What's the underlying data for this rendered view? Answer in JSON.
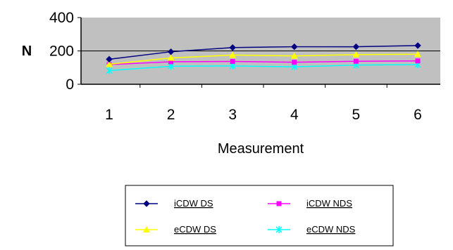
{
  "chart_data": {
    "type": "line",
    "title": "",
    "xlabel": "Measurement",
    "ylabel": "N",
    "categories": [
      "1",
      "2",
      "3",
      "4",
      "5",
      "6"
    ],
    "ylim": [
      0,
      400
    ],
    "yticks": [
      "0",
      "200",
      "400"
    ],
    "grid": "horizontal at 200",
    "legend_position": "bottom",
    "plot_background": "#c0c0c0",
    "series": [
      {
        "name": "iCDW DS",
        "color": "#000080",
        "marker": "diamond",
        "values": [
          150,
          195,
          220,
          225,
          225,
          232
        ]
      },
      {
        "name": "iCDW NDS",
        "color": "#ff00ff",
        "marker": "square",
        "values": [
          118,
          135,
          137,
          132,
          138,
          140
        ]
      },
      {
        "name": "eCDW DS",
        "color": "#ffff00",
        "marker": "triangle",
        "values": [
          120,
          158,
          175,
          170,
          178,
          180
        ]
      },
      {
        "name": "eCDW NDS",
        "color": "#00ffff",
        "marker": "x",
        "values": [
          82,
          108,
          110,
          105,
          115,
          118
        ]
      }
    ]
  }
}
